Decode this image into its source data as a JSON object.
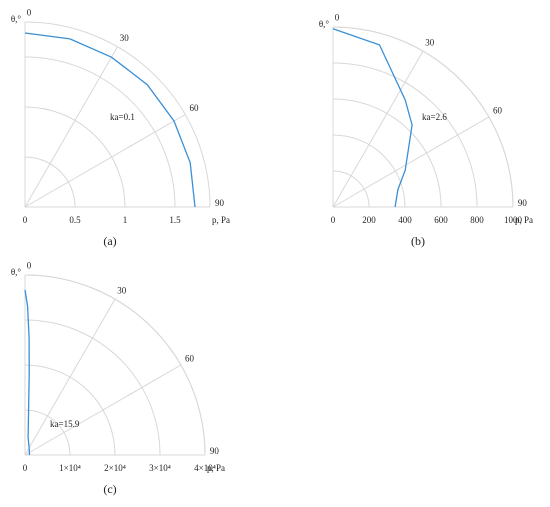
{
  "chart_data": [
    {
      "type": "polar",
      "caption": "(a)",
      "theta_label": "θ,°",
      "r_label": "p, Pa",
      "annotation": "ka=0.1",
      "x": [
        0,
        15,
        30,
        45,
        60,
        75,
        90
      ],
      "values": [
        1.74,
        1.74,
        1.73,
        1.73,
        1.72,
        1.71,
        1.7
      ],
      "color": "#3a8fd6",
      "thetaticks": [
        0,
        30,
        60,
        90
      ],
      "rlim": [
        0,
        1.85
      ],
      "rticks": [
        0,
        0.5,
        1,
        1.5
      ]
    },
    {
      "type": "polar",
      "caption": "(b)",
      "theta_label": "θ,°",
      "r_label": "p, Pa",
      "annotation": "ka=2.6",
      "x": [
        0,
        16,
        34,
        44,
        63,
        75,
        90
      ],
      "values": [
        990,
        937,
        717,
        633,
        450,
        373,
        345
      ],
      "color": "#3a8fd6",
      "thetaticks": [
        0,
        30,
        60,
        90
      ],
      "rlim": [
        0,
        1000
      ],
      "rticks": [
        0,
        200,
        400,
        600,
        800,
        1000
      ]
    },
    {
      "type": "polar",
      "caption": "(c)",
      "theta_label": "θ,°",
      "r_label": "p, Pa",
      "annotation": "ka=15.9",
      "x": [
        0,
        1,
        2,
        3,
        5,
        10,
        20,
        40,
        90
      ],
      "values": [
        36700,
        33000,
        26000,
        18000,
        9000,
        4000,
        2500,
        1500,
        1000
      ],
      "color": "#3a8fd6",
      "thetaticks": [
        0,
        30,
        60,
        90
      ],
      "rlim": [
        0,
        40000
      ],
      "rticks": [
        0,
        {
          "value": 10000,
          "label": "1×10⁴"
        },
        {
          "value": 20000,
          "label": "2×10⁴"
        },
        {
          "value": 30000,
          "label": "3×10⁴"
        },
        {
          "value": 40000,
          "label": "4×10⁴"
        }
      ]
    }
  ]
}
